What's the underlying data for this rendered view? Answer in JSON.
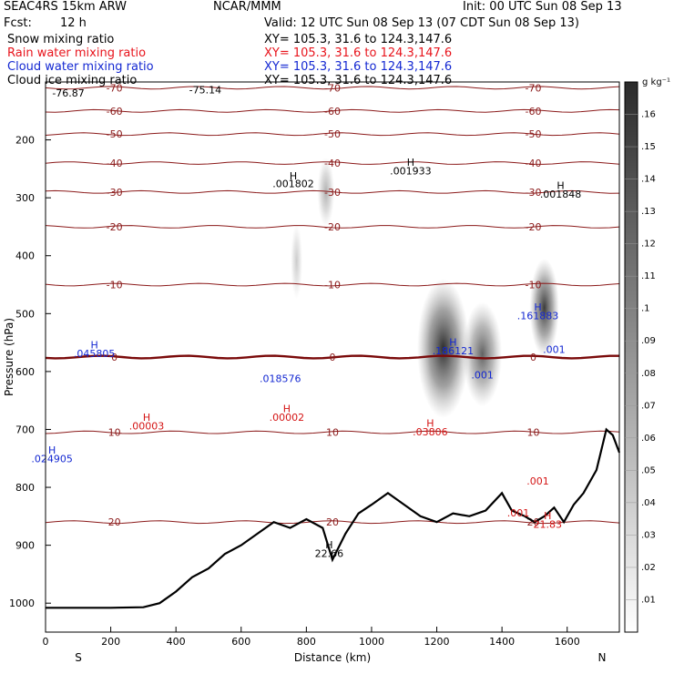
{
  "header": {
    "model": "SEAC4RS 15km ARW",
    "center": "NCAR/MMM",
    "init": "Init: 00 UTC Sun 08 Sep 13",
    "fcst_label": "Fcst:",
    "fcst_value": "12 h",
    "valid": "Valid: 12 UTC Sun 08 Sep 13 (07 CDT Sun 08 Sep 13)"
  },
  "fields": [
    {
      "name": "Snow mixing ratio",
      "xy": "XY= 105.3, 31.6 to 124.3,147.6",
      "color": "#000000"
    },
    {
      "name": "Rain water mixing ratio",
      "xy": "XY= 105.3, 31.6 to 124.3,147.6",
      "color": "#e8141c"
    },
    {
      "name": "Cloud water mixing ratio",
      "xy": "XY= 105.3, 31.6 to 124.3,147.6",
      "color": "#1428d2"
    },
    {
      "name": "Cloud ice mixing ratio",
      "xy": "XY= 105.3, 31.6 to 124.3,147.6",
      "color": "#000000"
    }
  ],
  "chart_data": {
    "type": "contour-cross-section",
    "xlabel": "Distance (km)",
    "ylabel": "Pressure (hPa)",
    "x_ticks": [
      0,
      200,
      400,
      600,
      800,
      1000,
      1200,
      1400,
      1600
    ],
    "y_ticks": [
      200,
      300,
      400,
      500,
      600,
      700,
      800,
      900,
      1000
    ],
    "xlim": [
      0,
      1760
    ],
    "ylim": [
      1050,
      100
    ],
    "endpoint_left": "S",
    "endpoint_right": "N",
    "colorbar": {
      "unit": "g kg⁻¹",
      "levels": [
        ".01",
        ".02",
        ".03",
        ".04",
        ".05",
        ".06",
        ".07",
        ".08",
        ".09",
        ".1",
        ".11",
        ".12",
        ".13",
        ".14",
        ".15",
        ".16"
      ]
    },
    "terrain_pressure": [
      {
        "x": 0,
        "p": 1008
      },
      {
        "x": 100,
        "p": 1008
      },
      {
        "x": 200,
        "p": 1008
      },
      {
        "x": 300,
        "p": 1007
      },
      {
        "x": 350,
        "p": 1000
      },
      {
        "x": 400,
        "p": 980
      },
      {
        "x": 450,
        "p": 955
      },
      {
        "x": 500,
        "p": 940
      },
      {
        "x": 550,
        "p": 915
      },
      {
        "x": 600,
        "p": 900
      },
      {
        "x": 650,
        "p": 880
      },
      {
        "x": 700,
        "p": 860
      },
      {
        "x": 750,
        "p": 870
      },
      {
        "x": 800,
        "p": 855
      },
      {
        "x": 850,
        "p": 870
      },
      {
        "x": 880,
        "p": 925
      },
      {
        "x": 920,
        "p": 880
      },
      {
        "x": 960,
        "p": 845
      },
      {
        "x": 1000,
        "p": 830
      },
      {
        "x": 1050,
        "p": 810
      },
      {
        "x": 1100,
        "p": 830
      },
      {
        "x": 1150,
        "p": 850
      },
      {
        "x": 1200,
        "p": 860
      },
      {
        "x": 1250,
        "p": 845
      },
      {
        "x": 1300,
        "p": 850
      },
      {
        "x": 1350,
        "p": 840
      },
      {
        "x": 1400,
        "p": 810
      },
      {
        "x": 1430,
        "p": 840
      },
      {
        "x": 1470,
        "p": 850
      },
      {
        "x": 1500,
        "p": 860
      },
      {
        "x": 1530,
        "p": 850
      },
      {
        "x": 1560,
        "p": 835
      },
      {
        "x": 1590,
        "p": 860
      },
      {
        "x": 1620,
        "p": 830
      },
      {
        "x": 1650,
        "p": 810
      },
      {
        "x": 1690,
        "p": 770
      },
      {
        "x": 1720,
        "p": 700
      },
      {
        "x": 1740,
        "p": 710
      },
      {
        "x": 1760,
        "p": 740
      }
    ],
    "temperature_contours": [
      {
        "label": "-70",
        "p": 110
      },
      {
        "label": "-60",
        "p": 150
      },
      {
        "label": "-50",
        "p": 190
      },
      {
        "label": "-40",
        "p": 240
      },
      {
        "label": "-30",
        "p": 290
      },
      {
        "label": "-20",
        "p": 350
      },
      {
        "label": "-10",
        "p": 450
      },
      {
        "label": "0",
        "p": 575
      },
      {
        "label": "10",
        "p": 705
      },
      {
        "label": "20",
        "p": 860
      }
    ],
    "labels_black": [
      {
        "text": "-76.87",
        "x": 70,
        "p": 125
      },
      {
        "text": "-75.14",
        "x": 490,
        "p": 120
      },
      {
        "text": "H",
        "x": 760,
        "p": 268
      },
      {
        "text": ".001802",
        "x": 760,
        "p": 282
      },
      {
        "text": "H",
        "x": 1120,
        "p": 245
      },
      {
        "text": ".001933",
        "x": 1120,
        "p": 260
      },
      {
        "text": "H",
        "x": 1580,
        "p": 285
      },
      {
        "text": ".001848",
        "x": 1580,
        "p": 300
      },
      {
        "text": "H",
        "x": 870,
        "p": 905
      },
      {
        "text": "22.66",
        "x": 870,
        "p": 920
      }
    ],
    "labels_red": [
      {
        "text": "H",
        "x": 310,
        "p": 685
      },
      {
        "text": ".00003",
        "x": 310,
        "p": 700
      },
      {
        "text": "H",
        "x": 740,
        "p": 670
      },
      {
        "text": ".00002",
        "x": 740,
        "p": 685
      },
      {
        "text": "H",
        "x": 1180,
        "p": 695
      },
      {
        "text": ".03806",
        "x": 1180,
        "p": 710
      },
      {
        "text": ".001",
        "x": 1510,
        "p": 795
      },
      {
        "text": ".001",
        "x": 1450,
        "p": 850
      },
      {
        "text": "H",
        "x": 1540,
        "p": 855
      },
      {
        "text": "21.83",
        "x": 1540,
        "p": 870
      }
    ],
    "labels_blue": [
      {
        "text": "H",
        "x": 150,
        "p": 560
      },
      {
        "text": ".045805",
        "x": 150,
        "p": 575
      },
      {
        "text": ".018576",
        "x": 720,
        "p": 618
      },
      {
        "text": "H",
        "x": 20,
        "p": 742
      },
      {
        "text": ".024905",
        "x": 20,
        "p": 757
      },
      {
        "text": "H",
        "x": 1250,
        "p": 555
      },
      {
        "text": ".186121",
        "x": 1250,
        "p": 570
      },
      {
        "text": ".001",
        "x": 1340,
        "p": 612
      },
      {
        "text": "H",
        "x": 1510,
        "p": 495
      },
      {
        "text": ".161883",
        "x": 1510,
        "p": 510
      },
      {
        "text": ".001",
        "x": 1560,
        "p": 568
      }
    ],
    "ice_cores": [
      {
        "x": 860,
        "p": 290,
        "rx": 26,
        "rp": 60,
        "intensity": 0.06
      },
      {
        "x": 770,
        "p": 410,
        "rx": 18,
        "rp": 65,
        "intensity": 0.04
      },
      {
        "x": 1220,
        "p": 560,
        "rx": 80,
        "rp": 120,
        "intensity": 0.16
      },
      {
        "x": 1340,
        "p": 570,
        "rx": 60,
        "rp": 90,
        "intensity": 0.12
      },
      {
        "x": 1530,
        "p": 490,
        "rx": 45,
        "rp": 85,
        "intensity": 0.15
      }
    ]
  }
}
